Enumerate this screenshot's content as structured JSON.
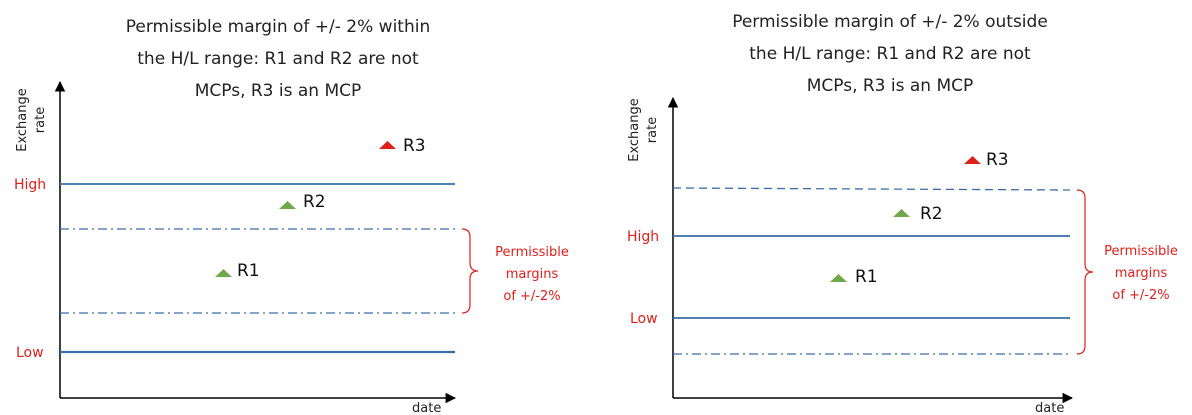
{
  "colors": {
    "line": "#3a6ea8",
    "red": "#e0201b",
    "green": "#6fa94a",
    "axis": "#000000"
  },
  "left": {
    "title_lines": [
      "Permissible margin of +/- 2% within",
      "the H/L range: R1 and R2 are not",
      "MCPs, R3 is an MCP"
    ],
    "y_axis_lines": [
      "Exchange",
      "rate"
    ],
    "x_axis": "date",
    "high_label": "High",
    "low_label": "Low",
    "bracket_lines": [
      "Permissible",
      "margins",
      "of +/-2%"
    ],
    "r1": "R1",
    "r2": "R2",
    "r3": "R3"
  },
  "right": {
    "title_lines": [
      "Permissible margin of +/- 2% outside",
      "the H/L range: R1 and R2 are not",
      "MCPs, R3 is an MCP"
    ],
    "y_axis_lines": [
      "Exchange",
      "rate"
    ],
    "x_axis": "date",
    "high_label": "High",
    "low_label": "Low",
    "bracket_lines": [
      "Permissible",
      "margins",
      "of +/-2%"
    ],
    "r1": "R1",
    "r2": "R2",
    "r3": "R3"
  }
}
